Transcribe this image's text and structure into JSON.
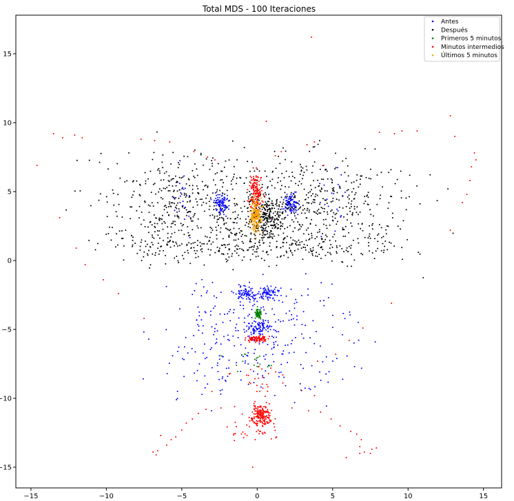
{
  "chart_data": {
    "type": "scatter",
    "title": "Total MDS - 100 Iteraciones",
    "xlabel": "",
    "ylabel": "",
    "xlim": [
      -16,
      16.2
    ],
    "ylim": [
      -16.5,
      17.8
    ],
    "xticks": [
      -15,
      -10,
      -5,
      0,
      5,
      10,
      15
    ],
    "yticks": [
      -15,
      -10,
      -5,
      0,
      5,
      10,
      15
    ],
    "grid": false,
    "legend_position": "top-right",
    "series": [
      {
        "name": "Antes",
        "color": "#0000ff",
        "clusters": [
          {
            "cx": -2.4,
            "cy": 4.1,
            "sx": 0.25,
            "sy": 0.35,
            "n": 90
          },
          {
            "cx": 2.3,
            "cy": 4.1,
            "sx": 0.25,
            "sy": 0.35,
            "n": 90
          },
          {
            "cx": -0.7,
            "cy": -2.4,
            "sx": 0.35,
            "sy": 0.25,
            "n": 70
          },
          {
            "cx": 0.7,
            "cy": -2.4,
            "sx": 0.35,
            "sy": 0.25,
            "n": 70
          },
          {
            "cx": 0.1,
            "cy": -4.9,
            "sx": 0.4,
            "sy": 0.25,
            "n": 70
          },
          {
            "cx": 0.0,
            "cy": -5.5,
            "sx": 3.0,
            "sy": 2.3,
            "n": 320
          },
          {
            "cx": -5.2,
            "cy": 4.3,
            "sx": 0.6,
            "sy": 1.0,
            "n": 25
          },
          {
            "cx": 5.3,
            "cy": 4.3,
            "sx": 0.6,
            "sy": 1.0,
            "n": 25
          }
        ]
      },
      {
        "name": "Después",
        "color": "#000000",
        "clusters": [
          {
            "cx": -4.5,
            "cy": 4.2,
            "sx": 3.0,
            "sy": 1.8,
            "n": 450
          },
          {
            "cx": 4.0,
            "cy": 4.2,
            "sx": 3.0,
            "sy": 1.8,
            "n": 450
          },
          {
            "cx": 0.6,
            "cy": 3.1,
            "sx": 0.6,
            "sy": 0.8,
            "n": 250
          },
          {
            "cx": -4.0,
            "cy": 1.0,
            "sx": 2.8,
            "sy": 0.6,
            "n": 150
          },
          {
            "cx": 4.0,
            "cy": 1.0,
            "sx": 2.8,
            "sy": 0.6,
            "n": 150
          }
        ]
      },
      {
        "name": "Primeros 5 minutos",
        "color": "#008000",
        "clusters": [
          {
            "cx": 0.05,
            "cy": -3.9,
            "sx": 0.12,
            "sy": 0.2,
            "n": 60
          },
          {
            "cx": -0.3,
            "cy": -7.4,
            "sx": 0.8,
            "sy": 0.3,
            "n": 18
          }
        ]
      },
      {
        "name": "Minutos intermedios",
        "color": "#ff0000",
        "clusters": [
          {
            "cx": 0.25,
            "cy": -11.2,
            "sx": 0.3,
            "sy": 0.35,
            "n": 170
          },
          {
            "cx": 0.0,
            "cy": -5.7,
            "sx": 0.35,
            "sy": 0.12,
            "n": 80
          },
          {
            "cx": -0.1,
            "cy": 5.0,
            "sx": 0.2,
            "sy": 0.7,
            "n": 150
          },
          {
            "cx": 0.1,
            "cy": -12.2,
            "sx": 1.0,
            "sy": 0.5,
            "n": 40
          },
          {
            "cx": 0.0,
            "cy": -8.5,
            "sx": 1.2,
            "sy": 0.7,
            "n": 25
          }
        ],
        "points": [
          [
            3.6,
            16.2
          ],
          [
            -13.5,
            9.2
          ],
          [
            -12.9,
            8.9
          ],
          [
            -12.1,
            9.1
          ],
          [
            -11.6,
            8.9
          ],
          [
            -14.6,
            6.9
          ],
          [
            -13.1,
            3.1
          ],
          [
            -12.0,
            0.9
          ],
          [
            -11.4,
            -0.3
          ],
          [
            -10.2,
            -1.4
          ],
          [
            -9.2,
            -2.4
          ],
          [
            -7.7,
            8.8
          ],
          [
            -6.8,
            8.7
          ],
          [
            -5.8,
            8.6
          ],
          [
            -4.2,
            7.9
          ],
          [
            -3.3,
            7.5
          ],
          [
            -2.8,
            7.3
          ],
          [
            0.6,
            10.1
          ],
          [
            1.2,
            7.6
          ],
          [
            1.6,
            7.9
          ],
          [
            3.3,
            8.4
          ],
          [
            3.8,
            8.6
          ],
          [
            4.4,
            6.9
          ],
          [
            8.1,
            9.3
          ],
          [
            9.1,
            9.2
          ],
          [
            9.6,
            9.4
          ],
          [
            10.6,
            9.4
          ],
          [
            12.8,
            10.5
          ],
          [
            13.1,
            9.0
          ],
          [
            14.4,
            7.8
          ],
          [
            14.5,
            7.3
          ],
          [
            14.2,
            6.8
          ],
          [
            14.1,
            5.8
          ],
          [
            13.9,
            4.8
          ],
          [
            13.6,
            4.2
          ],
          [
            12.8,
            2.2
          ],
          [
            8.9,
            -3.1
          ],
          [
            7.0,
            -4.9
          ],
          [
            6.1,
            -5.8
          ],
          [
            5.2,
            -6.8
          ],
          [
            4.0,
            -7.3
          ],
          [
            3.8,
            -9.8
          ],
          [
            -6.4,
            -12.7
          ],
          [
            -6.7,
            -14.1
          ],
          [
            -6.9,
            -13.9
          ],
          [
            -6.6,
            -13.8
          ],
          [
            -6.0,
            -13.4
          ],
          [
            -5.7,
            -13.0
          ],
          [
            -5.4,
            -12.8
          ],
          [
            -5.0,
            -12.3
          ],
          [
            -4.7,
            -11.8
          ],
          [
            -4.3,
            -11.5
          ],
          [
            -3.9,
            -11.1
          ],
          [
            -3.4,
            -10.8
          ],
          [
            -2.4,
            -10.7
          ],
          [
            -1.5,
            -10.6
          ],
          [
            -0.3,
            -15.0
          ],
          [
            0.8,
            -10.4
          ],
          [
            2.3,
            -10.7
          ],
          [
            3.4,
            -10.9
          ],
          [
            4.2,
            -11.0
          ],
          [
            4.9,
            -11.5
          ],
          [
            5.5,
            -12.0
          ],
          [
            6.2,
            -12.4
          ],
          [
            6.6,
            -12.6
          ],
          [
            6.9,
            -13.0
          ],
          [
            6.8,
            -13.5
          ],
          [
            7.1,
            -13.9
          ],
          [
            7.5,
            -14.0
          ],
          [
            7.6,
            -13.7
          ],
          [
            7.9,
            -13.6
          ],
          [
            5.9,
            -14.3
          ],
          [
            6.8,
            -14.0
          ],
          [
            -7.5,
            -4.2
          ],
          [
            -3.0,
            -9.5
          ],
          [
            2.9,
            -9.4
          ],
          [
            -1.8,
            -8.2
          ],
          [
            1.7,
            -8.3
          ]
        ]
      },
      {
        "name": "Últimos 5 minutos",
        "color": "#ffa500",
        "clusters": [
          {
            "cx": -0.1,
            "cy": 3.2,
            "sx": 0.18,
            "sy": 0.6,
            "n": 180
          }
        ]
      }
    ]
  }
}
